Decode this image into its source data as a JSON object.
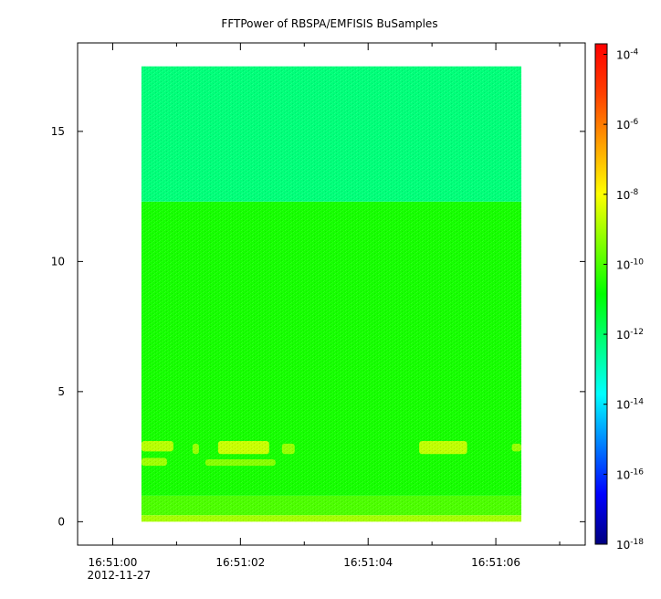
{
  "chart_data": {
    "type": "heatmap",
    "title": "FFTPower of RBSPA/EMFISIS  BuSamples",
    "xlabel": "",
    "ylabel": "",
    "x_ticks": [
      {
        "label": "16:51:00",
        "t": 0
      },
      {
        "label": "16:51:02",
        "t": 2
      },
      {
        "label": "16:51:04",
        "t": 4
      },
      {
        "label": "16:51:06",
        "t": 6
      }
    ],
    "x_minor_ticks": [
      1,
      3,
      5,
      7
    ],
    "x_date_label": "2012-11-27",
    "xlim": [
      -0.55,
      7.4
    ],
    "ylim": [
      -0.9,
      18.4
    ],
    "y_ticks": [
      0,
      5,
      10,
      15
    ],
    "data_extent": {
      "t_start": 0.45,
      "t_end": 6.4,
      "y_start": 0.0,
      "y_end": 17.5
    },
    "power_bands": [
      {
        "y_from": 0.0,
        "y_to": 0.25,
        "log10_power": -9.0
      },
      {
        "y_from": 0.25,
        "y_to": 1.0,
        "log10_power": -10.0
      },
      {
        "y_from": 1.0,
        "y_to": 12.3,
        "log10_power": -10.6
      },
      {
        "y_from": 12.3,
        "y_to": 17.5,
        "log10_power": -12.2
      }
    ],
    "features": [
      {
        "t_from": 0.45,
        "t_to": 0.95,
        "y_from": 2.7,
        "y_to": 3.1,
        "log10_power": -8.6
      },
      {
        "t_from": 0.45,
        "t_to": 0.85,
        "y_from": 2.15,
        "y_to": 2.45,
        "log10_power": -8.9
      },
      {
        "t_from": 1.25,
        "t_to": 1.35,
        "y_from": 2.6,
        "y_to": 3.0,
        "log10_power": -9.0
      },
      {
        "t_from": 1.65,
        "t_to": 2.45,
        "y_from": 2.6,
        "y_to": 3.1,
        "log10_power": -8.4
      },
      {
        "t_from": 1.45,
        "t_to": 2.55,
        "y_from": 2.15,
        "y_to": 2.4,
        "log10_power": -9.2
      },
      {
        "t_from": 2.65,
        "t_to": 2.85,
        "y_from": 2.6,
        "y_to": 3.0,
        "log10_power": -9.0
      },
      {
        "t_from": 4.8,
        "t_to": 5.55,
        "y_from": 2.6,
        "y_to": 3.1,
        "log10_power": -8.5
      },
      {
        "t_from": 6.25,
        "t_to": 6.4,
        "y_from": 2.7,
        "y_to": 3.0,
        "log10_power": -9.0
      }
    ],
    "colorbar": {
      "scale": "log",
      "range": [
        -18,
        -3.7
      ],
      "ticks": [
        {
          "base": "10",
          "exp": "-4",
          "value": -4
        },
        {
          "base": "10",
          "exp": "-6",
          "value": -6
        },
        {
          "base": "10",
          "exp": "-8",
          "value": -8
        },
        {
          "base": "10",
          "exp": "-10",
          "value": -10
        },
        {
          "base": "10",
          "exp": "-12",
          "value": -12
        },
        {
          "base": "10",
          "exp": "-14",
          "value": -14
        },
        {
          "base": "10",
          "exp": "-16",
          "value": -16
        },
        {
          "base": "10",
          "exp": "-18",
          "value": -18
        }
      ],
      "colormap": [
        "#00007f",
        "#0000ff",
        "#0080ff",
        "#00ffff",
        "#00ff80",
        "#00ff00",
        "#80ff00",
        "#ffff00",
        "#ffa000",
        "#ff4000",
        "#ff0000"
      ]
    },
    "grid": false
  }
}
